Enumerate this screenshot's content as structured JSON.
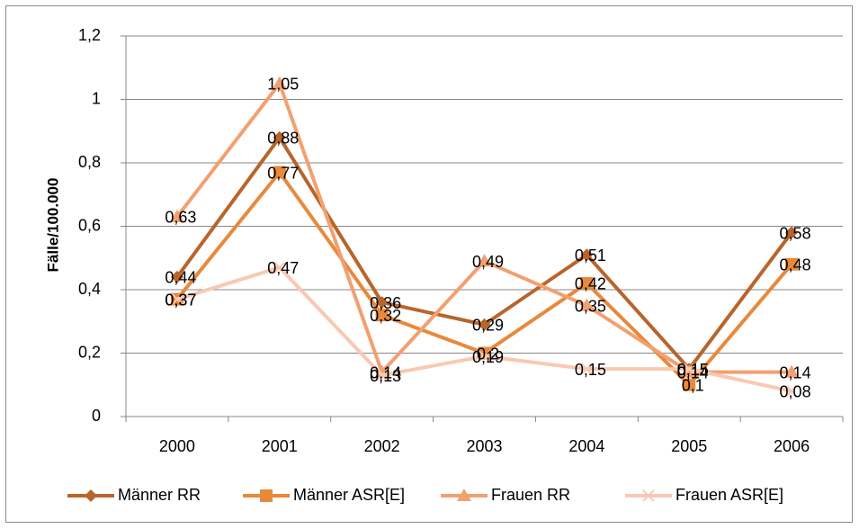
{
  "chart_data": {
    "type": "line",
    "y_label": "Fälle/100.000",
    "categories": [
      "2000",
      "2001",
      "2002",
      "2003",
      "2004",
      "2005",
      "2006"
    ],
    "series": [
      {
        "name": "Männer RR",
        "color": "#b8652b",
        "marker": "diamond",
        "values": [
          0.44,
          0.88,
          0.36,
          0.29,
          0.51,
          0.15,
          0.58
        ],
        "value_labels": [
          "0,44",
          "0,88",
          "0,36",
          "0,29",
          "0,51",
          "0,15",
          "0,58"
        ]
      },
      {
        "name": "Männer ASR[E]",
        "color": "#e8893b",
        "marker": "square",
        "values": [
          0.37,
          0.77,
          0.32,
          0.2,
          0.42,
          0.1,
          0.48
        ],
        "value_labels": [
          "0,37",
          "0,77",
          "0,32",
          "0,2",
          "0,42",
          "0,1",
          "0,48"
        ]
      },
      {
        "name": "Frauen RR",
        "color": "#f2a070",
        "marker": "triangle",
        "values": [
          0.63,
          1.05,
          0.14,
          0.49,
          0.35,
          0.14,
          0.14
        ],
        "value_labels": [
          "0,63",
          "1,05",
          "0,14",
          "0,49",
          "0,35",
          "0,14",
          "0,14"
        ]
      },
      {
        "name": "Frauen ASR[E]",
        "color": "#f8c9b2",
        "marker": "x",
        "values": [
          0.37,
          0.47,
          0.13,
          0.19,
          0.15,
          0.15,
          0.08
        ],
        "value_labels": [
          "0,37",
          "0,47",
          "0,13",
          "0,19",
          "0,15",
          "0,15",
          "0,08"
        ]
      }
    ],
    "ylim": [
      0,
      1.2
    ],
    "yticks": [
      0,
      {
        "value": 0.2,
        "label": "0,2"
      },
      {
        "value": 0.4,
        "label": "0,4"
      },
      {
        "value": 0.6,
        "label": "0,6"
      },
      {
        "value": 0.8,
        "label": "0,8"
      },
      1,
      {
        "value": 1.2,
        "label": "1,2"
      }
    ],
    "grid": true,
    "legend": "bottom"
  }
}
